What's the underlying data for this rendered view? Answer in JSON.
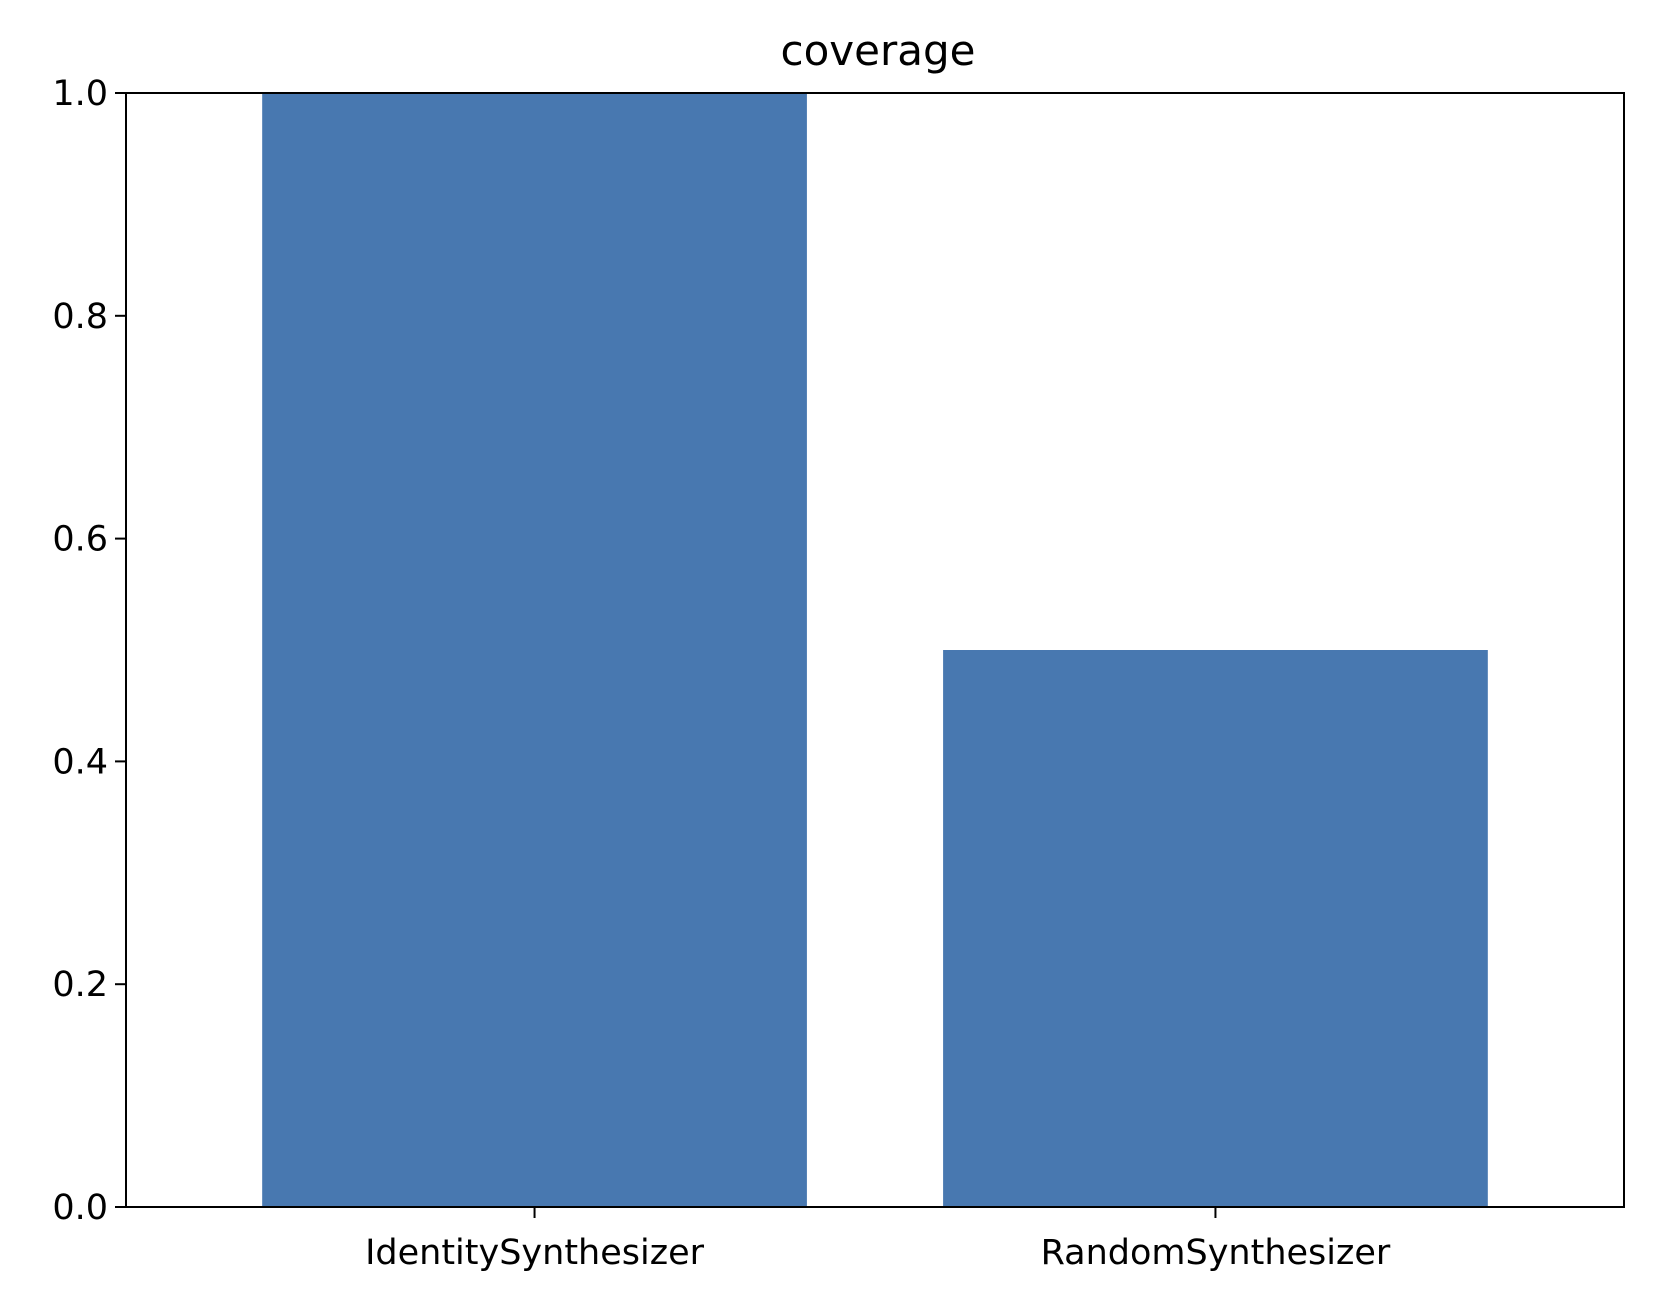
{
  "chart_data": {
    "type": "bar",
    "title": "coverage",
    "xlabel": "",
    "ylabel": "",
    "categories": [
      "IdentitySynthesizer",
      "RandomSynthesizer"
    ],
    "values": [
      1.0,
      0.5
    ],
    "ylim": [
      0.0,
      1.0
    ],
    "yticks": [
      "0.0",
      "0.2",
      "0.4",
      "0.6",
      "0.8",
      "1.0"
    ],
    "grid": false,
    "bar_color": "#4878b0"
  }
}
